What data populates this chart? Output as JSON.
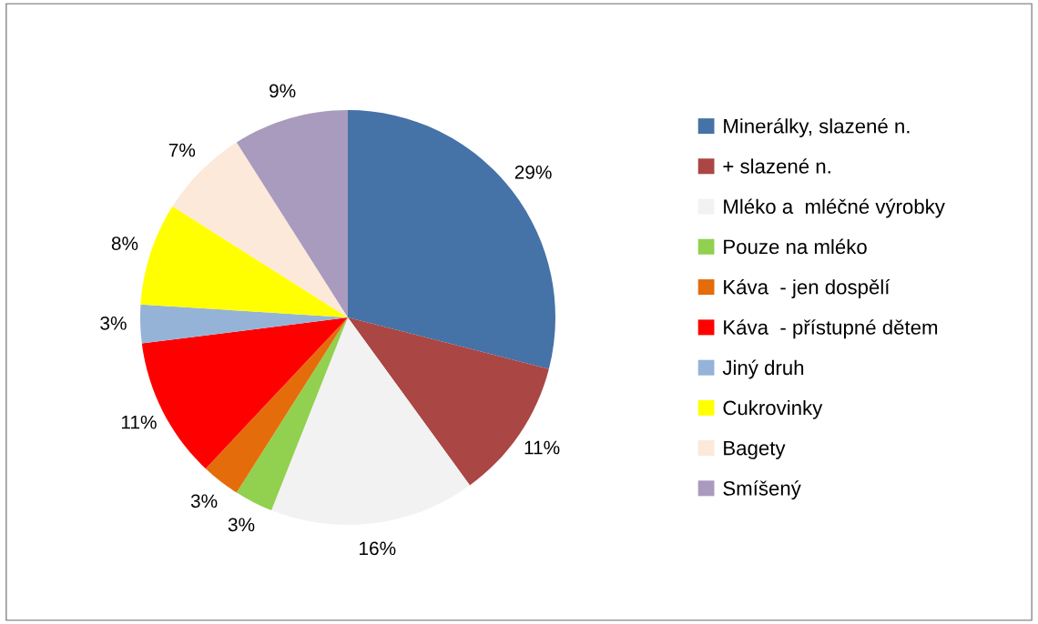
{
  "chart_data": {
    "type": "pie",
    "categories": [
      "Minerálky, slazené n.",
      "+ slazené n.",
      "Mléko a  mléčné výrobky",
      "Pouze na mléko",
      "Káva  - jen dospělí",
      "Káva  - přístupné dětem",
      "Jiný druh",
      "Cukrovinky",
      "Bagety",
      "Smíšený"
    ],
    "values": [
      29,
      11,
      16,
      3,
      3,
      11,
      3,
      8,
      7,
      9
    ],
    "value_labels": [
      "29%",
      "11%",
      "16%",
      "3%",
      "3%",
      "11%",
      "3%",
      "8%",
      "7%",
      "9%"
    ],
    "colors": [
      "#4572a7",
      "#aa4643",
      "#f2f2f2",
      "#92d050",
      "#e46c0a",
      "#ff0000",
      "#95b3d7",
      "#ffff00",
      "#fde9d9",
      "#a99bbd"
    ],
    "legend": "right"
  }
}
